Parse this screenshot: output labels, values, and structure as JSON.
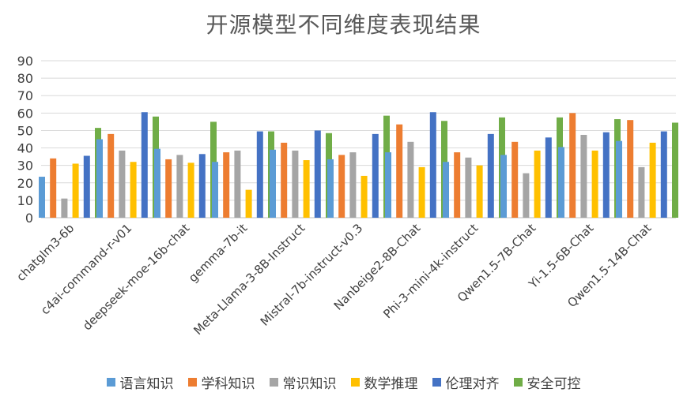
{
  "chart_data": {
    "type": "bar",
    "title": "开源模型不同维度表现结果",
    "xlabel": "",
    "ylabel": "",
    "ylim": [
      0,
      90
    ],
    "yticks": [
      0,
      10,
      20,
      30,
      40,
      50,
      60,
      70,
      80,
      90
    ],
    "grid": true,
    "legend_position": "bottom",
    "categories": [
      "chatglm3-6b",
      "c4ai-command-r-v01",
      "deepseek-moe-16b-chat",
      "gemma-7b-it",
      "Meta-Llama-3-8B-Instruct",
      "Mistral-7b-instruct-v0.3",
      "Nanbeige2-8B-Chat",
      "Phi-3-mini-4k-instruct",
      "Qwen1.5-7B-Chat",
      "Yi-1.5-6B-Chat",
      "Qwen1.5-14B-Chat"
    ],
    "series": [
      {
        "name": "语言知识",
        "color": "#5B9BD5",
        "values": [
          23.5,
          45,
          39.5,
          32,
          39,
          33.5,
          37.5,
          32,
          36,
          40.5,
          44
        ]
      },
      {
        "name": "学科知识",
        "color": "#ED7D31",
        "values": [
          34,
          48,
          33.5,
          37.5,
          43,
          36,
          53.5,
          37.5,
          43.5,
          60,
          56
        ]
      },
      {
        "name": "常识知识",
        "color": "#A5A5A5",
        "values": [
          11,
          38.5,
          36,
          38.5,
          38.5,
          37.5,
          43.5,
          34.5,
          25.5,
          47.5,
          29
        ]
      },
      {
        "name": "数学推理",
        "color": "#FFC000",
        "values": [
          31,
          32,
          31.5,
          16,
          33,
          24,
          29,
          30,
          38.5,
          38.5,
          43
        ]
      },
      {
        "name": "伦理对齐",
        "color": "#4472C4",
        "values": [
          35.5,
          60.5,
          36.5,
          49.5,
          50,
          48,
          60.5,
          48,
          46,
          49,
          49.5
        ]
      },
      {
        "name": "安全可控",
        "color": "#70AD47",
        "values": [
          51.5,
          58,
          55,
          49.5,
          48.5,
          58.5,
          55.5,
          57.5,
          57.5,
          56.5,
          54.5
        ]
      }
    ]
  }
}
